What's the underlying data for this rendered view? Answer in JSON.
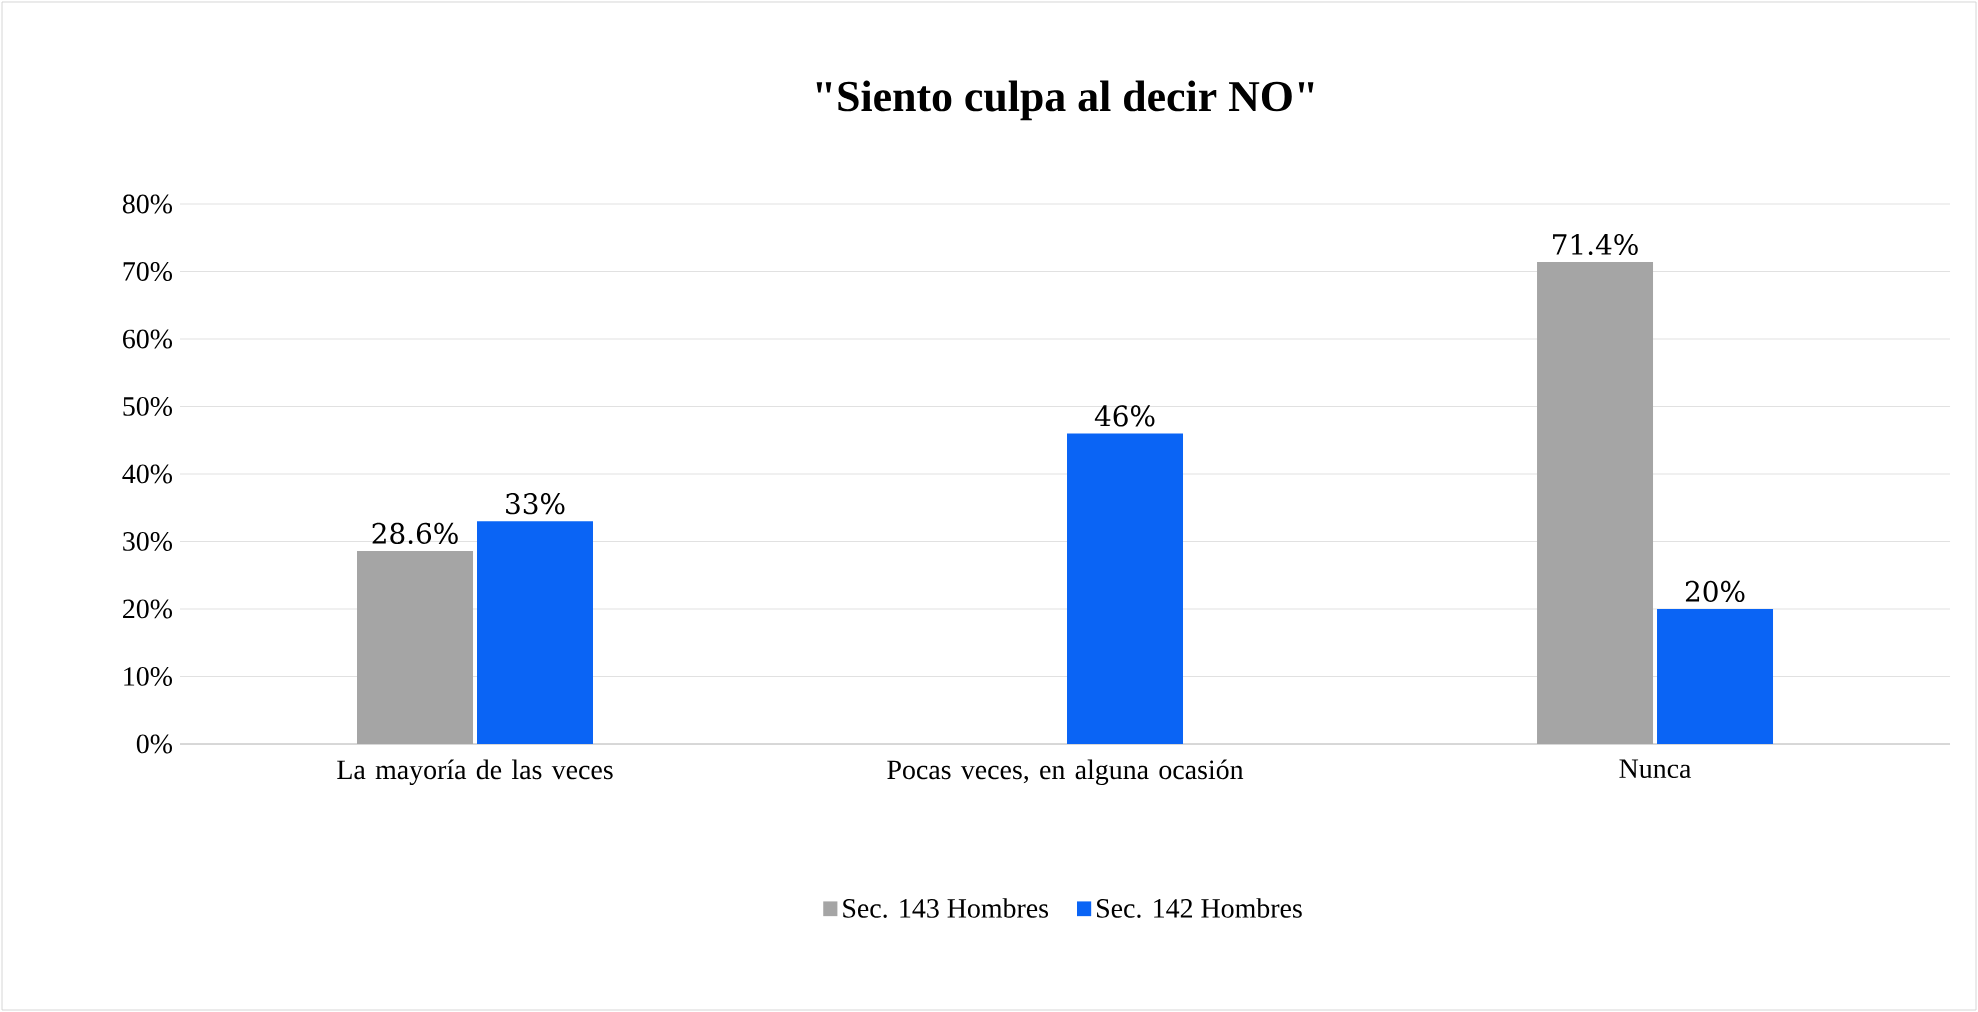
{
  "chart_data": {
    "type": "bar",
    "title": "\"Siento culpa al decir NO\"",
    "categories": [
      "La mayoría de las veces",
      "Pocas veces, en alguna ocasión",
      "Nunca"
    ],
    "series": [
      {
        "name": "Sec. 143 Hombres",
        "color": "#a5a5a5",
        "values": [
          28.6,
          null,
          71.4
        ],
        "value_labels": [
          "28.6%",
          null,
          "71.4%"
        ]
      },
      {
        "name": "Sec. 142 Hombres",
        "color": "#0a64f5",
        "values": [
          33,
          46,
          20
        ],
        "value_labels": [
          "33%",
          "46%",
          "20%"
        ]
      }
    ],
    "ylim": [
      0,
      80
    ],
    "yticks": [
      {
        "value": 0,
        "label": "0%"
      },
      {
        "value": 10,
        "label": "10%"
      },
      {
        "value": 20,
        "label": "20%"
      },
      {
        "value": 30,
        "label": "30%"
      },
      {
        "value": 40,
        "label": "40%"
      },
      {
        "value": 50,
        "label": "50%"
      },
      {
        "value": 60,
        "label": "60%"
      },
      {
        "value": 70,
        "label": "70%"
      },
      {
        "value": 80,
        "label": "80%"
      }
    ],
    "grid": "y",
    "legend": "bottom"
  }
}
